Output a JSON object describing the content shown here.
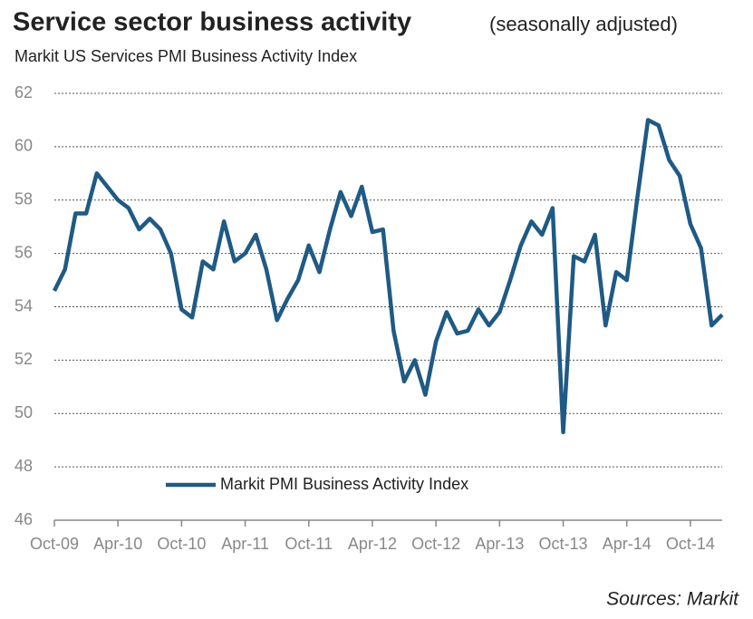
{
  "chart_data": {
    "type": "line",
    "title": "Service sector business activity",
    "title_note": "(seasonally adjusted)",
    "subtitle": "Markit US Services PMI Business Activity Index",
    "source": "Sources: Markit",
    "categories": [
      "Oct-09",
      null,
      null,
      null,
      null,
      null,
      "Apr-10",
      null,
      null,
      null,
      null,
      null,
      "Oct-10",
      null,
      null,
      null,
      null,
      null,
      "Apr-11",
      null,
      null,
      null,
      null,
      null,
      "Oct-11",
      null,
      null,
      null,
      null,
      null,
      "Apr-12",
      null,
      null,
      null,
      null,
      null,
      "Oct-12",
      null,
      null,
      null,
      null,
      null,
      "Apr-13",
      null,
      null,
      null,
      null,
      null,
      "Oct-13",
      null,
      null,
      null,
      null,
      null,
      "Apr-14",
      null,
      null,
      null,
      null,
      null,
      "Oct-14",
      null,
      null,
      null
    ],
    "series": [
      {
        "name": "Markit PMI Business Activity Index",
        "color": "#1f5a85",
        "values": [
          54.6,
          55.4,
          57.5,
          57.5,
          59.0,
          58.5,
          58.0,
          57.7,
          56.9,
          57.3,
          56.9,
          56.0,
          53.9,
          53.6,
          55.7,
          55.4,
          57.2,
          55.7,
          56.0,
          56.7,
          55.4,
          53.5,
          54.3,
          55.0,
          56.3,
          55.3,
          56.9,
          58.3,
          57.4,
          58.5,
          56.8,
          56.9,
          53.1,
          51.2,
          52.0,
          50.7,
          52.7,
          53.8,
          53.0,
          53.1,
          53.9,
          53.3,
          53.8,
          55.0,
          56.3,
          57.2,
          56.7,
          57.7,
          49.3,
          55.9,
          55.7,
          56.7,
          53.3,
          55.3,
          55.0,
          58.1,
          61.0,
          60.8,
          59.5,
          58.9,
          57.1,
          56.2,
          53.3,
          53.7
        ]
      }
    ],
    "ylim": [
      46,
      62
    ],
    "yticks": [
      46,
      48,
      50,
      52,
      54,
      56,
      58,
      60,
      62
    ],
    "grid": true,
    "legend": "lower left"
  }
}
